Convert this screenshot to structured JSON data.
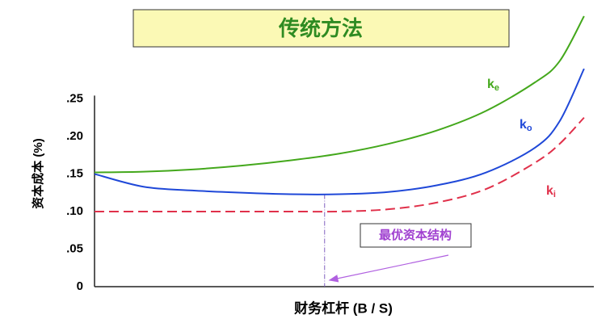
{
  "chart_data": {
    "type": "line",
    "title": "传统方法",
    "ylabel": "资本成本 (%)",
    "xlabel": "财务杠杆 (B / S)",
    "x": [
      0,
      1,
      2,
      3,
      4,
      5,
      6,
      7,
      8,
      9,
      9.5,
      10
    ],
    "xlim": [
      0,
      10.2
    ],
    "ylim": [
      0,
      0.36
    ],
    "yticks": [
      0,
      {
        "value": 0.05,
        "label": ".05"
      },
      {
        "value": 0.1,
        "label": ".10"
      },
      {
        "value": 0.15,
        "label": ".15"
      },
      {
        "value": 0.2,
        "label": ".20"
      },
      {
        "value": 0.25,
        "label": ".25"
      }
    ],
    "grid": false,
    "series": [
      {
        "name": "ke",
        "color": "#44a81c",
        "dashed": false,
        "values": [
          0.152,
          0.153,
          0.156,
          0.161,
          0.168,
          0.177,
          0.19,
          0.208,
          0.234,
          0.272,
          0.3,
          0.36
        ]
      },
      {
        "name": "ko",
        "color": "#1f48d8",
        "dashed": false,
        "values": [
          0.15,
          0.133,
          0.128,
          0.125,
          0.123,
          0.123,
          0.126,
          0.135,
          0.152,
          0.185,
          0.22,
          0.29
        ]
      },
      {
        "name": "ki",
        "color": "#e0304a",
        "dashed": true,
        "values": [
          0.1,
          0.1,
          0.1,
          0.1,
          0.1,
          0.1,
          0.103,
          0.112,
          0.13,
          0.165,
          0.19,
          0.225
        ]
      }
    ],
    "annotation": {
      "text": "最优资本结构",
      "x": 4.7,
      "y": 0.123
    }
  }
}
